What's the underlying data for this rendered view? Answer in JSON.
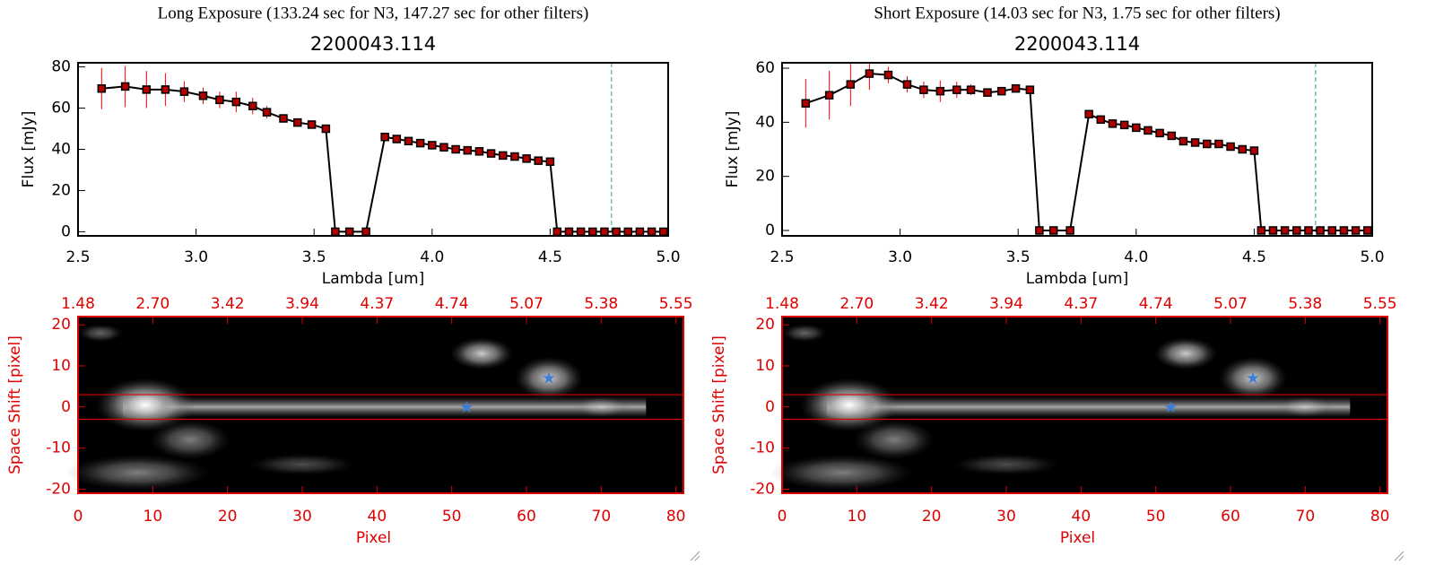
{
  "chart_data": [
    {
      "type": "line",
      "heading": "Long Exposure (133.24 sec for N3, 147.27 sec for other filters)",
      "title": "2200043.114",
      "xlabel": "Lambda [um]",
      "ylabel": "Flux [mJy]",
      "x": [
        2.6,
        2.7,
        2.79,
        2.87,
        2.95,
        3.03,
        3.1,
        3.17,
        3.24,
        3.3,
        3.37,
        3.43,
        3.49,
        3.55,
        3.59,
        3.65,
        3.72,
        3.8,
        3.85,
        3.9,
        3.95,
        4.0,
        4.05,
        4.1,
        4.15,
        4.2,
        4.25,
        4.3,
        4.35,
        4.4,
        4.45,
        4.5,
        4.53,
        4.58,
        4.63,
        4.68,
        4.73,
        4.78,
        4.83,
        4.88,
        4.93,
        4.98
      ],
      "series": [
        {
          "color": "#000000",
          "marker_color": "#b00000",
          "error_color": "#ff0000",
          "values": [
            69.5,
            70.5,
            69,
            69,
            68,
            66,
            64,
            63,
            61,
            58,
            55,
            53,
            52,
            50,
            0,
            0,
            0,
            46,
            45,
            44,
            43,
            42,
            41,
            40,
            39.5,
            39,
            38,
            37,
            36.5,
            35.5,
            34.5,
            34,
            0,
            0,
            0,
            0,
            0,
            0,
            0,
            0,
            0,
            0
          ],
          "errors": [
            10,
            10,
            9,
            8,
            5,
            4,
            4,
            5,
            4,
            3,
            2,
            1,
            1,
            1,
            0,
            0,
            0,
            1,
            1,
            1,
            1,
            1,
            1,
            1,
            1,
            1,
            1,
            1,
            1,
            1,
            1,
            1,
            0,
            0,
            0,
            0,
            0,
            0,
            0,
            0,
            0,
            0
          ]
        }
      ],
      "xlim": [
        2.5,
        5.0
      ],
      "xticks": [
        {
          "value": 2.5,
          "label": "2.5"
        },
        {
          "value": 3,
          "label": "3.0"
        },
        {
          "value": 3.5,
          "label": "3.5"
        },
        {
          "value": 4,
          "label": "4.0"
        },
        {
          "value": 4.5,
          "label": "4.5"
        },
        {
          "value": 5,
          "label": "5.0"
        }
      ],
      "ylim": [
        -2,
        82
      ],
      "yticks": [
        0,
        20,
        40,
        60,
        80
      ],
      "vline": 4.76,
      "vline_color": "#2aa198"
    },
    {
      "type": "image",
      "xlabel": "Pixel",
      "ylabel": "Space Shift [pixel]",
      "xlim": [
        0,
        81
      ],
      "xticks": [
        0,
        10,
        20,
        30,
        40,
        50,
        60,
        70,
        80
      ],
      "top_ticks": [
        {
          "value": 0,
          "label": "1.48"
        },
        {
          "value": 10,
          "label": "2.70"
        },
        {
          "value": 20,
          "label": "3.42"
        },
        {
          "value": 30,
          "label": "3.94"
        },
        {
          "value": 40,
          "label": "4.37"
        },
        {
          "value": 50,
          "label": "4.74"
        },
        {
          "value": 60,
          "label": "5.07"
        },
        {
          "value": 70,
          "label": "5.38"
        },
        {
          "value": 80,
          "label": "5.55"
        }
      ],
      "ylim": [
        -21,
        22
      ],
      "yticks": [
        -20,
        -10,
        0,
        10,
        20
      ],
      "hlines": [
        3,
        -3
      ],
      "hline_color": "#e00000",
      "markers": {
        "x": [
          52,
          63
        ],
        "y": [
          0,
          7
        ],
        "color": "#3b7fd9"
      },
      "axis_color": "#e00000"
    },
    {
      "type": "line",
      "heading": "Short Exposure (14.03 sec for N3, 1.75 sec for other filters)",
      "title": "2200043.114",
      "xlabel": "Lambda [um]",
      "ylabel": "Flux [mJy]",
      "x": [
        2.6,
        2.7,
        2.79,
        2.87,
        2.95,
        3.03,
        3.1,
        3.17,
        3.24,
        3.3,
        3.37,
        3.43,
        3.49,
        3.55,
        3.59,
        3.65,
        3.72,
        3.8,
        3.85,
        3.9,
        3.95,
        4.0,
        4.05,
        4.1,
        4.15,
        4.2,
        4.25,
        4.3,
        4.35,
        4.4,
        4.45,
        4.5,
        4.53,
        4.58,
        4.63,
        4.68,
        4.73,
        4.78,
        4.83,
        4.88,
        4.93,
        4.98
      ],
      "series": [
        {
          "color": "#000000",
          "marker_color": "#b00000",
          "error_color": "#ff0000",
          "values": [
            47,
            50,
            54,
            58,
            57.5,
            54,
            52,
            51.5,
            52,
            52,
            51,
            51.5,
            52.5,
            52,
            0,
            0,
            0,
            43,
            41,
            39.5,
            39,
            38,
            37,
            36,
            35,
            33,
            32.5,
            32,
            32,
            31,
            30,
            29.5,
            0,
            0,
            0,
            0,
            0,
            0,
            0,
            0,
            0,
            0
          ],
          "errors": [
            9,
            9,
            8,
            6,
            3,
            3,
            3,
            4,
            3,
            2,
            1,
            1,
            1,
            1,
            0,
            0,
            0,
            1,
            1,
            1,
            1,
            1,
            1,
            1,
            1,
            1,
            1,
            1,
            1,
            1,
            1,
            1,
            0,
            0,
            0,
            0,
            0,
            0,
            0,
            0,
            0,
            0
          ]
        }
      ],
      "xlim": [
        2.5,
        5.0
      ],
      "xticks": [
        {
          "value": 2.5,
          "label": "2.5"
        },
        {
          "value": 3,
          "label": "3.0"
        },
        {
          "value": 3.5,
          "label": "3.5"
        },
        {
          "value": 4,
          "label": "4.0"
        },
        {
          "value": 4.5,
          "label": "4.5"
        },
        {
          "value": 5,
          "label": "5.0"
        }
      ],
      "ylim": [
        -2,
        62
      ],
      "yticks": [
        0,
        20,
        40,
        60
      ],
      "vline": 4.76,
      "vline_color": "#2aa198"
    },
    {
      "type": "image",
      "xlabel": "Pixel",
      "ylabel": "Space Shift [pixel]",
      "xlim": [
        0,
        81
      ],
      "xticks": [
        0,
        10,
        20,
        30,
        40,
        50,
        60,
        70,
        80
      ],
      "top_ticks": [
        {
          "value": 0,
          "label": "1.48"
        },
        {
          "value": 10,
          "label": "2.70"
        },
        {
          "value": 20,
          "label": "3.42"
        },
        {
          "value": 30,
          "label": "3.94"
        },
        {
          "value": 40,
          "label": "4.37"
        },
        {
          "value": 50,
          "label": "4.74"
        },
        {
          "value": 60,
          "label": "5.07"
        },
        {
          "value": 70,
          "label": "5.38"
        },
        {
          "value": 80,
          "label": "5.55"
        }
      ],
      "ylim": [
        -21,
        22
      ],
      "yticks": [
        -20,
        -10,
        0,
        10,
        20
      ],
      "hlines": [
        3,
        -3
      ],
      "hline_color": "#e00000",
      "markers": {
        "x": [
          52,
          63
        ],
        "y": [
          0,
          7
        ],
        "color": "#3b7fd9"
      },
      "axis_color": "#e00000"
    }
  ]
}
